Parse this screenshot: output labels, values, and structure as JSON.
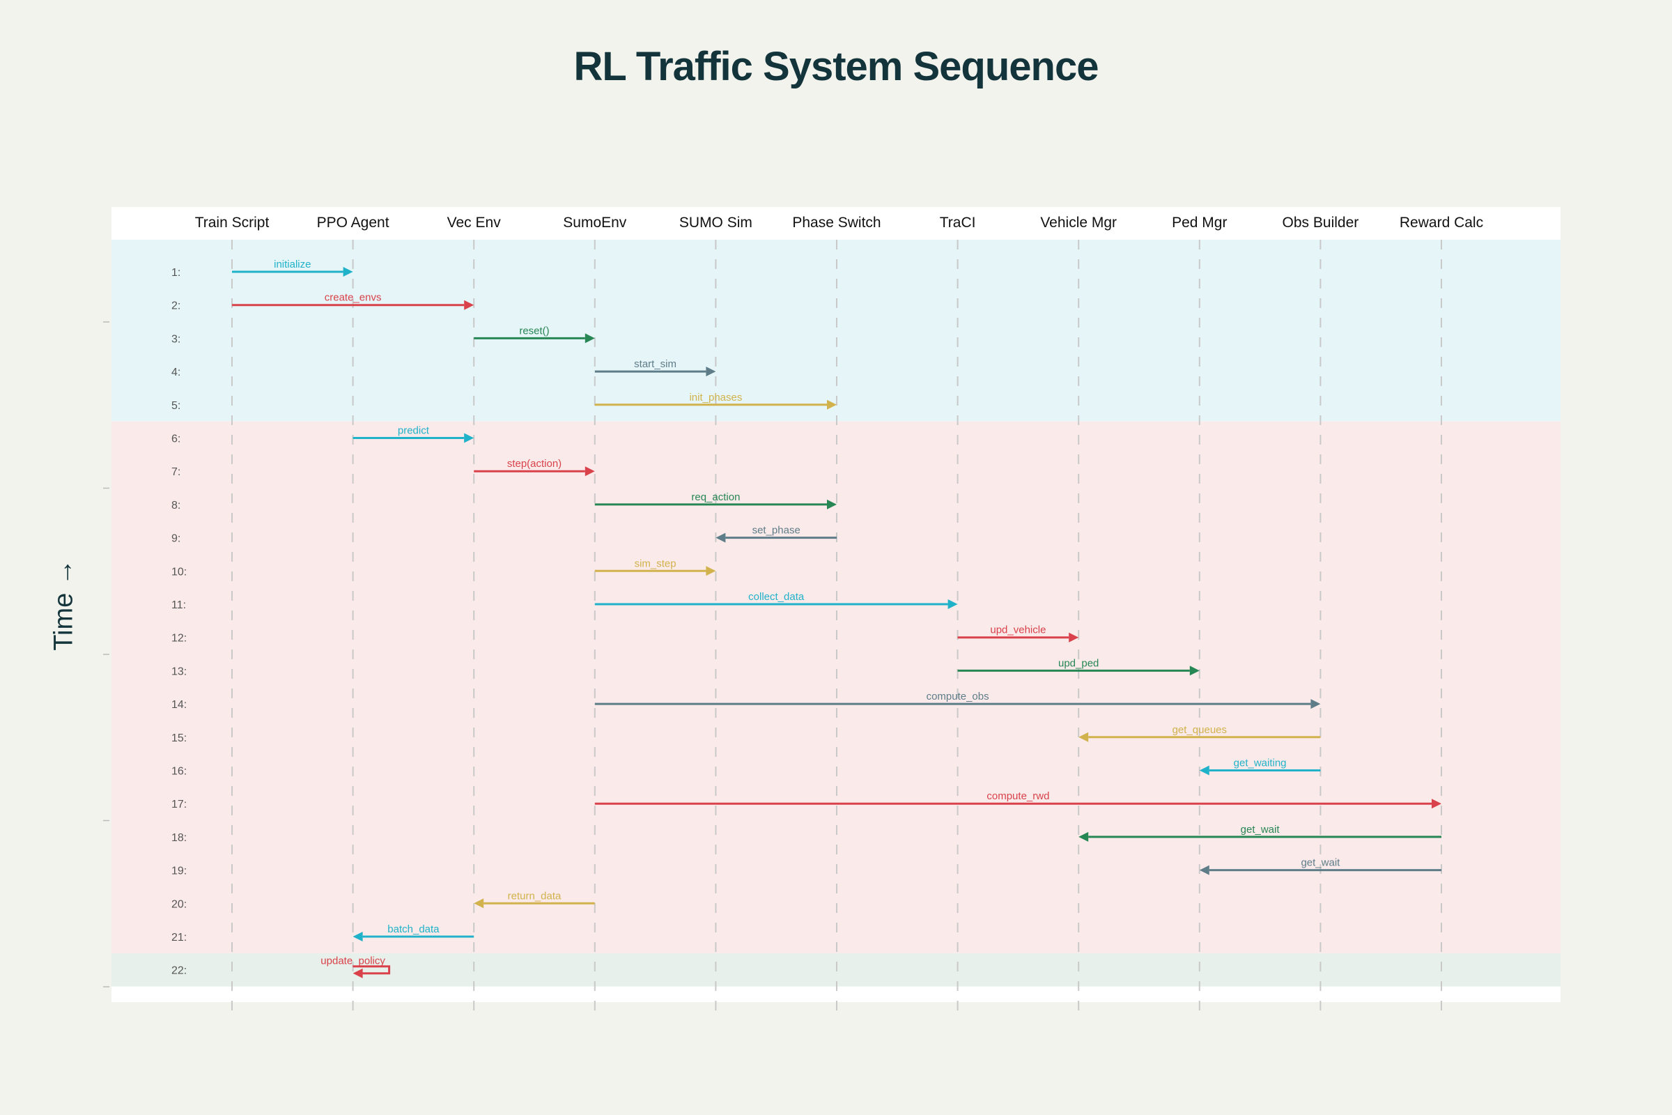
{
  "title": "RL Traffic System Sequence",
  "y_axis_label": "Time →",
  "participants": [
    "Train Script",
    "PPO Agent",
    "Vec Env",
    "SumoEnv",
    "SUMO Sim",
    "Phase Switch",
    "TraCI",
    "Vehicle Mgr",
    "Ped Mgr",
    "Obs Builder",
    "Reward Calc"
  ],
  "phases": [
    {
      "first_step": 1,
      "last_step": 5,
      "color": "#e6f5f7"
    },
    {
      "first_step": 6,
      "last_step": 21,
      "color": "#fbeaea"
    },
    {
      "first_step": 22,
      "last_step": 22,
      "color": "#e7f0ea"
    }
  ],
  "messages": [
    {
      "step": "1:",
      "from": 0,
      "to": 1,
      "label": "initialize",
      "color": "#20b2c9"
    },
    {
      "step": "2:",
      "from": 0,
      "to": 2,
      "label": "create_envs",
      "color": "#d9424a"
    },
    {
      "step": "3:",
      "from": 2,
      "to": 3,
      "label": "reset()",
      "color": "#268654"
    },
    {
      "step": "4:",
      "from": 3,
      "to": 4,
      "label": "start_sim",
      "color": "#5e7d89"
    },
    {
      "step": "5:",
      "from": 3,
      "to": 5,
      "label": "init_phases",
      "color": "#d1b24c"
    },
    {
      "step": "6:",
      "from": 1,
      "to": 2,
      "label": "predict",
      "color": "#20b2c9"
    },
    {
      "step": "7:",
      "from": 2,
      "to": 3,
      "label": "step(action)",
      "color": "#d9424a"
    },
    {
      "step": "8:",
      "from": 3,
      "to": 5,
      "label": "req_action",
      "color": "#268654"
    },
    {
      "step": "9:",
      "from": 5,
      "to": 4,
      "label": "set_phase",
      "color": "#5e7d89"
    },
    {
      "step": "10:",
      "from": 3,
      "to": 4,
      "label": "sim_step",
      "color": "#d1b24c"
    },
    {
      "step": "11:",
      "from": 3,
      "to": 6,
      "label": "collect_data",
      "color": "#20b2c9"
    },
    {
      "step": "12:",
      "from": 6,
      "to": 7,
      "label": "upd_vehicle",
      "color": "#d9424a"
    },
    {
      "step": "13:",
      "from": 6,
      "to": 8,
      "label": "upd_ped",
      "color": "#268654"
    },
    {
      "step": "14:",
      "from": 3,
      "to": 9,
      "label": "compute_obs",
      "color": "#5e7d89"
    },
    {
      "step": "15:",
      "from": 9,
      "to": 7,
      "label": "get_queues",
      "color": "#d1b24c"
    },
    {
      "step": "16:",
      "from": 9,
      "to": 8,
      "label": "get_waiting",
      "color": "#20b2c9"
    },
    {
      "step": "17:",
      "from": 3,
      "to": 10,
      "label": "compute_rwd",
      "color": "#d9424a"
    },
    {
      "step": "18:",
      "from": 10,
      "to": 7,
      "label": "get_wait",
      "color": "#268654"
    },
    {
      "step": "19:",
      "from": 10,
      "to": 8,
      "label": "get_wait",
      "color": "#5e7d89"
    },
    {
      "step": "20:",
      "from": 3,
      "to": 2,
      "label": "return_data",
      "color": "#d1b24c"
    },
    {
      "step": "21:",
      "from": 2,
      "to": 1,
      "label": "batch_data",
      "color": "#20b2c9"
    },
    {
      "step": "22:",
      "from": 1,
      "to": 1,
      "label": "update_policy",
      "color": "#d9424a"
    }
  ]
}
